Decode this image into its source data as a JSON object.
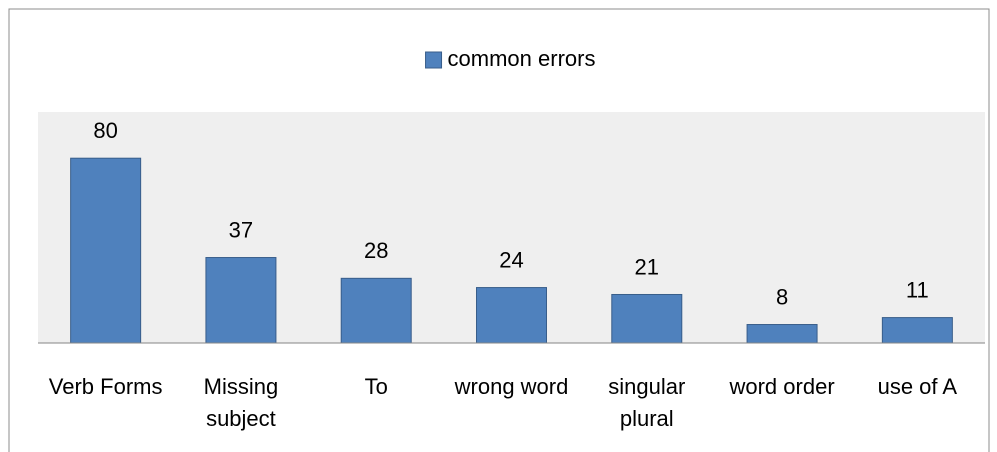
{
  "chart_data": {
    "type": "bar",
    "categories": [
      "Verb Forms",
      "Missing subject",
      "To",
      "wrong word",
      "singular plural",
      "word order",
      "use of A"
    ],
    "series": [
      {
        "name": "common errors",
        "color": "#4f81bd",
        "values": [
          80,
          37,
          28,
          24,
          21,
          8,
          11
        ]
      }
    ],
    "ylim": [
      0,
      100
    ],
    "legend": "top",
    "plot_background": "#efefef"
  }
}
